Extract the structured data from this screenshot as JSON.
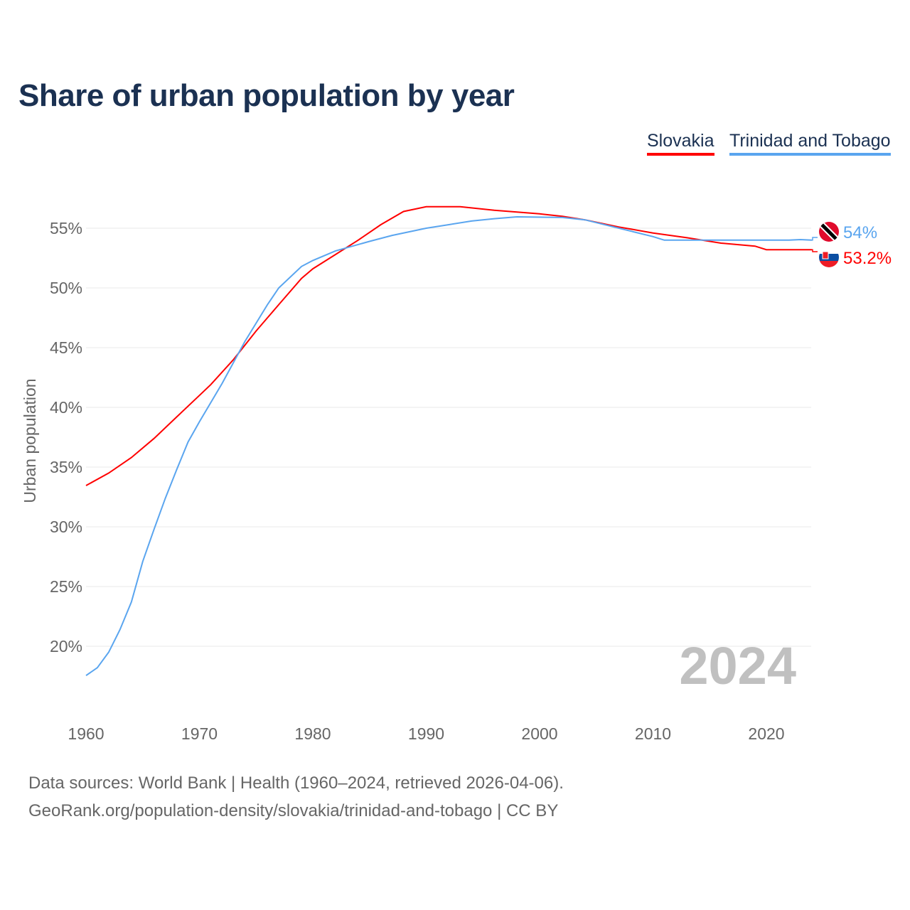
{
  "chart_data": {
    "type": "line",
    "title": "Share of urban population by year",
    "ylabel": "Urban population",
    "xlabel": "",
    "xlim": [
      1960,
      2024
    ],
    "ylim": [
      15,
      57.5
    ],
    "xticks": [
      1960,
      1970,
      1980,
      1990,
      2000,
      2010,
      2020
    ],
    "yticks": [
      20,
      25,
      30,
      35,
      40,
      45,
      50,
      55
    ],
    "ytick_labels": [
      "20%",
      "25%",
      "30%",
      "35%",
      "40%",
      "45%",
      "50%",
      "55%"
    ],
    "grid": true,
    "legend_placement": "top-right",
    "year_watermark": "2024",
    "series": [
      {
        "name": "Slovakia",
        "color": "#ff0000",
        "end_label": "53.2%",
        "x": [
          1960,
          1962,
          1964,
          1966,
          1968,
          1970,
          1971,
          1973,
          1975,
          1977,
          1979,
          1980,
          1982,
          1984,
          1986,
          1988,
          1990,
          1993,
          1996,
          2000,
          2002,
          2004,
          2007,
          2010,
          2013,
          2016,
          2019,
          2020,
          2024
        ],
        "y": [
          33.45,
          34.5,
          35.8,
          37.4,
          39.2,
          41.0,
          41.9,
          44.0,
          46.4,
          48.6,
          50.8,
          51.6,
          52.8,
          54.0,
          55.3,
          56.4,
          56.8,
          56.8,
          56.5,
          56.2,
          56.0,
          55.7,
          55.1,
          54.6,
          54.2,
          53.75,
          53.5,
          53.2,
          53.2
        ]
      },
      {
        "name": "Trinidad and Tobago",
        "color": "#5aa5ef",
        "end_label": "54%",
        "x": [
          1960,
          1961,
          1962,
          1963,
          1964,
          1965,
          1966,
          1967,
          1968,
          1969,
          1970,
          1972,
          1974,
          1976,
          1977,
          1979,
          1980,
          1982,
          1985,
          1987,
          1990,
          1992,
          1994,
          1996,
          1998,
          2002,
          2004,
          2007,
          2010,
          2011,
          2022,
          2023,
          2024
        ],
        "y": [
          17.55,
          18.2,
          19.5,
          21.4,
          23.7,
          27.1,
          29.8,
          32.4,
          34.8,
          37.1,
          38.8,
          42.0,
          45.5,
          48.6,
          50.0,
          51.8,
          52.3,
          53.1,
          53.9,
          54.4,
          55.0,
          55.3,
          55.6,
          55.8,
          55.95,
          55.9,
          55.7,
          55.0,
          54.3,
          54.0,
          54.0,
          54.05,
          54.0
        ]
      }
    ]
  },
  "legend": {
    "slovakia": "Slovakia",
    "trinidad": "Trinidad and Tobago"
  },
  "footer": {
    "line1": "Data sources: World Bank | Health (1960–2024, retrieved 2026-04-06).",
    "line2": "GeoRank.org/population-density/slovakia/trinidad-and-tobago | CC BY"
  }
}
